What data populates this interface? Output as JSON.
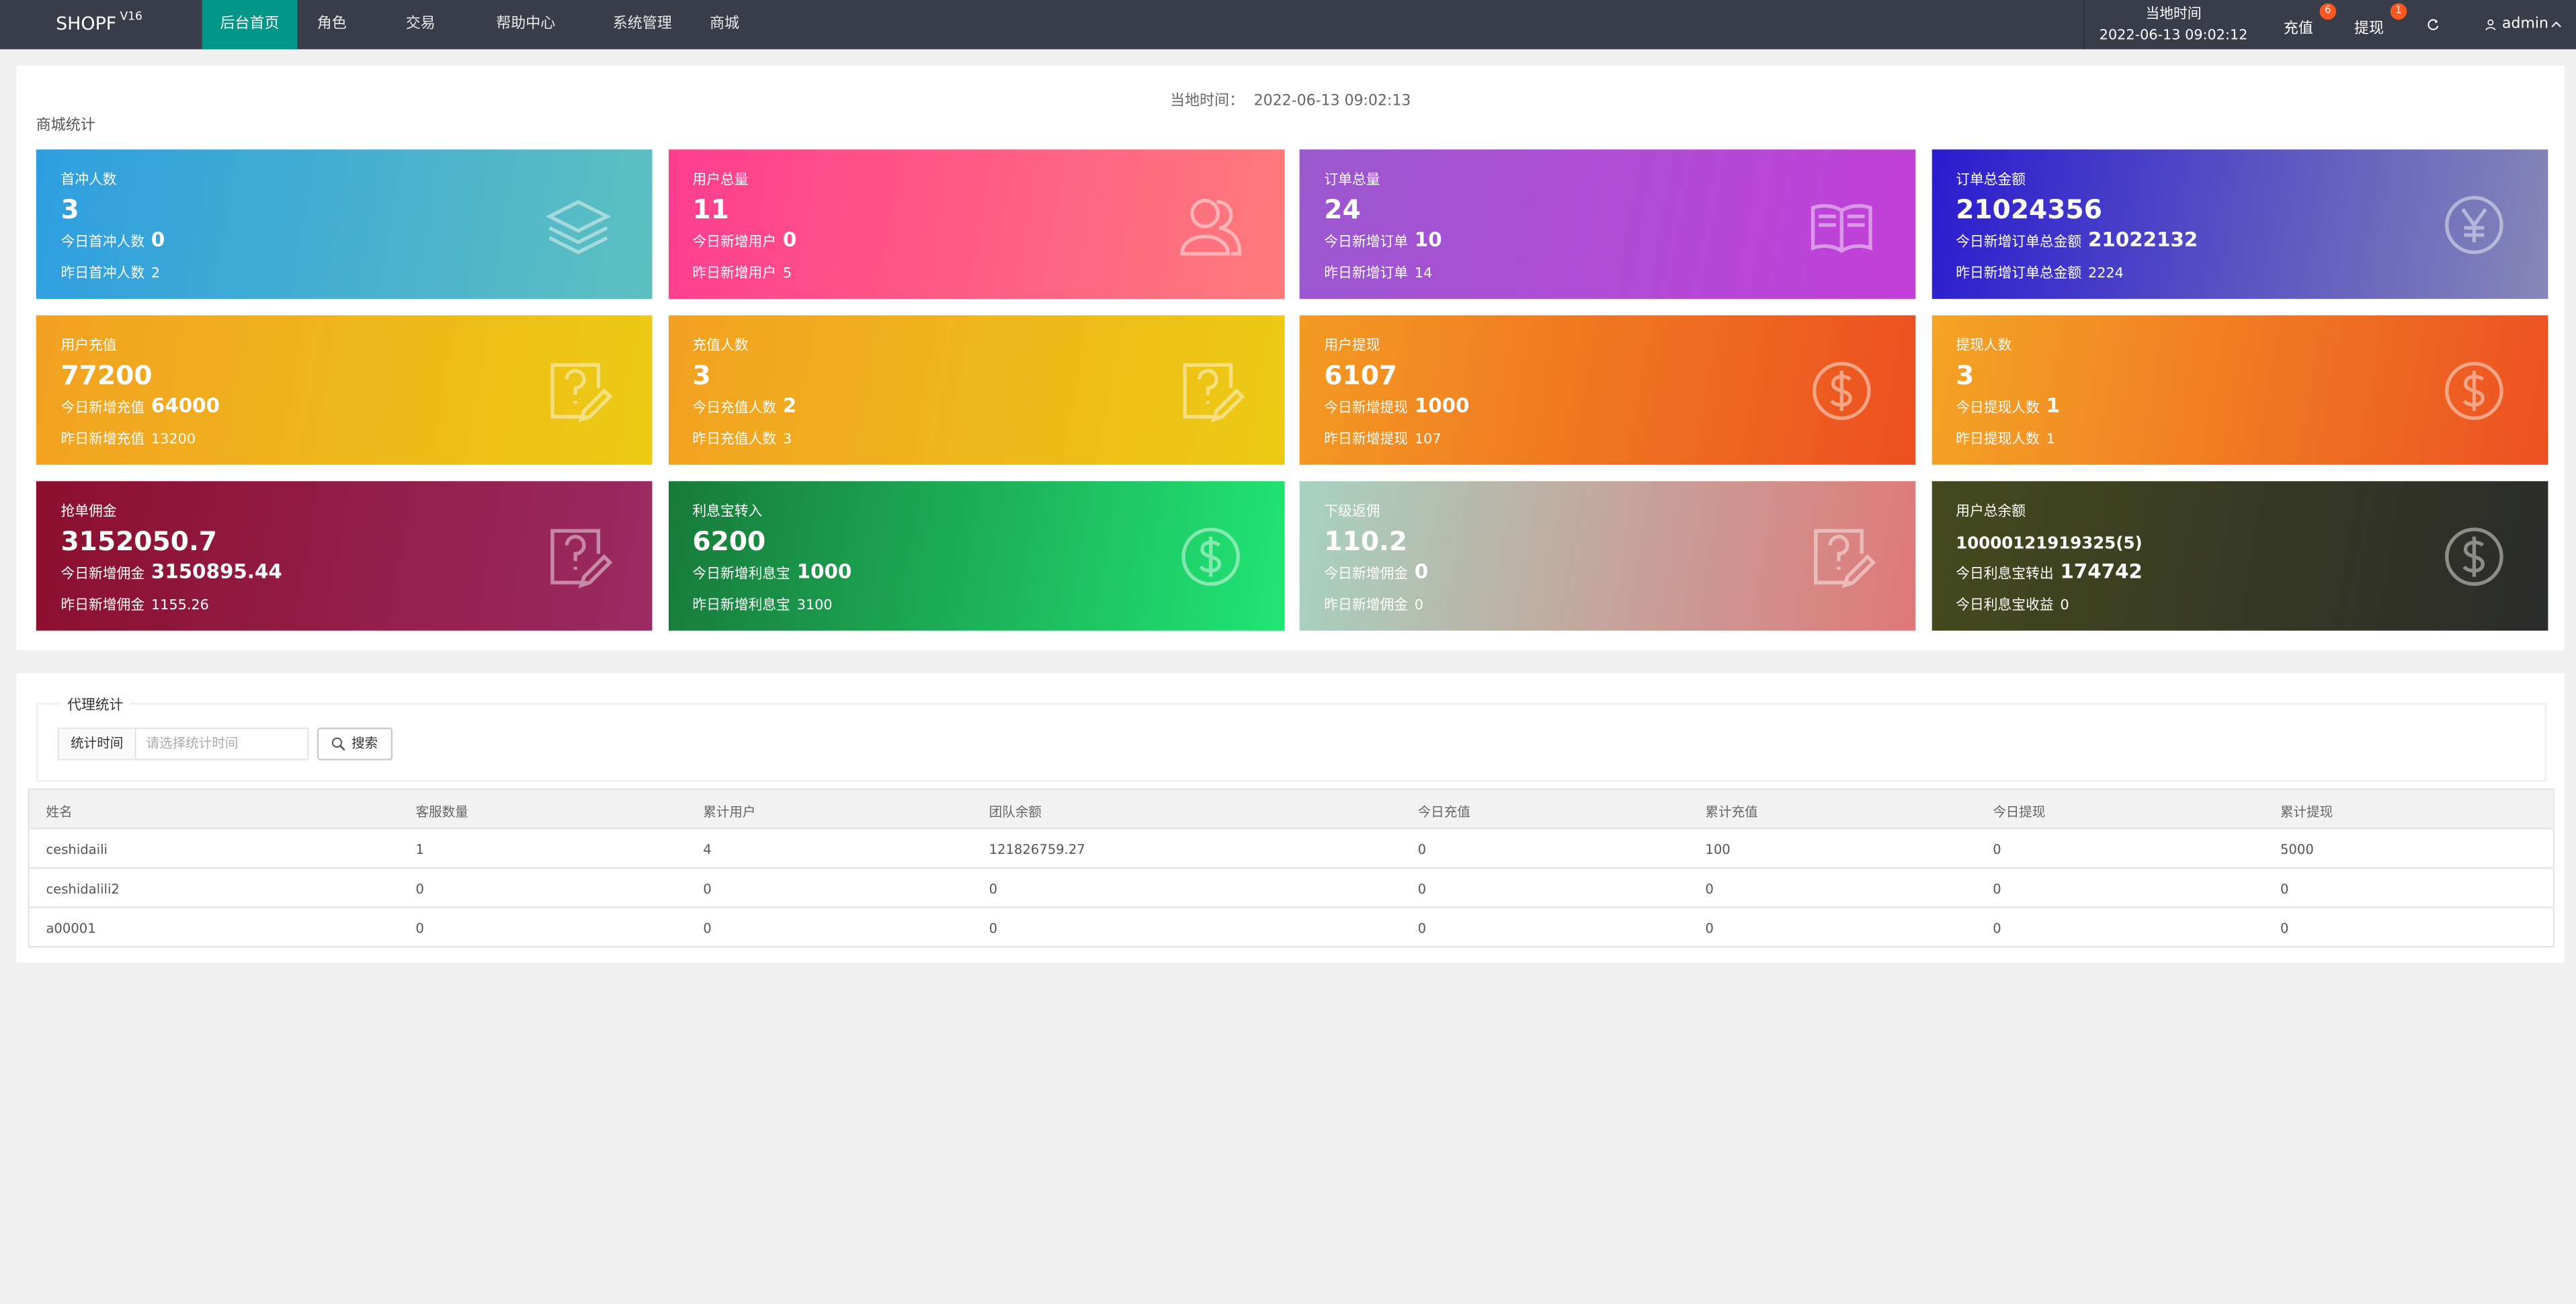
{
  "nav": {
    "brand": "SHOPF",
    "version": "V16",
    "menu": [
      "后台首页",
      "角色",
      "交易",
      "帮助中心",
      "系统管理",
      "商城"
    ],
    "time_label": "当地时间",
    "time": "2022-06-13 09:02:12",
    "recharge": {
      "label": "充值",
      "badge": "6"
    },
    "withdraw": {
      "label": "提现",
      "badge": "1"
    },
    "user": "admin"
  },
  "stats": {
    "time_label": "当地时间：",
    "time": "2022-06-13 09:02:13",
    "title": "商城统计",
    "cards": [
      {
        "title": "首冲人数",
        "value": "3",
        "line1": {
          "label": "今日首冲人数",
          "value": "0"
        },
        "line2": {
          "label": "昨日首冲人数",
          "value": "2"
        }
      },
      {
        "title": "用户总量",
        "value": "11",
        "line1": {
          "label": "今日新增用户",
          "value": "0"
        },
        "line2": {
          "label": "昨日新增用户",
          "value": "5"
        }
      },
      {
        "title": "订单总量",
        "value": "24",
        "line1": {
          "label": "今日新增订单",
          "value": "10"
        },
        "line2": {
          "label": "昨日新增订单",
          "value": "14"
        }
      },
      {
        "title": "订单总金额",
        "value": "21024356",
        "line1": {
          "label": "今日新增订单总金额",
          "value": "21022132"
        },
        "line2": {
          "label": "昨日新增订单总金额",
          "value": "2224"
        }
      },
      {
        "title": "用户充值",
        "value": "77200",
        "line1": {
          "label": "今日新增充值",
          "value": "64000"
        },
        "line2": {
          "label": "昨日新增充值",
          "value": "13200"
        }
      },
      {
        "title": "充值人数",
        "value": "3",
        "line1": {
          "label": "今日充值人数",
          "value": "2"
        },
        "line2": {
          "label": "昨日充值人数",
          "value": "3"
        }
      },
      {
        "title": "用户提现",
        "value": "6107",
        "line1": {
          "label": "今日新增提现",
          "value": "1000"
        },
        "line2": {
          "label": "昨日新增提现",
          "value": "107"
        }
      },
      {
        "title": "提现人数",
        "value": "3",
        "line1": {
          "label": "今日提现人数",
          "value": "1"
        },
        "line2": {
          "label": "昨日提现人数",
          "value": "1"
        }
      },
      {
        "title": "抢单佣金",
        "value": "3152050.7",
        "line1": {
          "label": "今日新增佣金",
          "value": "3150895.44"
        },
        "line2": {
          "label": "昨日新增佣金",
          "value": "1155.26"
        }
      },
      {
        "title": "利息宝转入",
        "value": "6200",
        "line1": {
          "label": "今日新增利息宝",
          "value": "1000"
        },
        "line2": {
          "label": "昨日新增利息宝",
          "value": "3100"
        }
      },
      {
        "title": "下级返佣",
        "value": "110.2",
        "line1": {
          "label": "今日新增佣金",
          "value": "0"
        },
        "line2": {
          "label": "昨日新增佣金",
          "value": "0"
        }
      },
      {
        "title": "用户总余额",
        "value": "10000121919325(5)",
        "line1": {
          "label": "今日利息宝转出",
          "value": "174742"
        },
        "line2": {
          "label": "今日利息宝收益",
          "value": "0"
        }
      }
    ]
  },
  "agent": {
    "legend": "代理统计",
    "filter_label": "统计时间",
    "placeholder": "请选择统计时间",
    "search": "搜索",
    "table": {
      "headers": [
        "姓名",
        "客服数量",
        "累计用户",
        "团队余额",
        "今日充值",
        "累计充值",
        "今日提现",
        "累计提现"
      ],
      "rows": [
        [
          "ceshidaili",
          "1",
          "4",
          "121826759.27",
          "0",
          "100",
          "0",
          "5000"
        ],
        [
          "ceshidalili2",
          "0",
          "0",
          "0",
          "0",
          "0",
          "0",
          "0"
        ],
        [
          "a00001",
          "0",
          "0",
          "0",
          "0",
          "0",
          "0",
          "0"
        ]
      ]
    }
  }
}
